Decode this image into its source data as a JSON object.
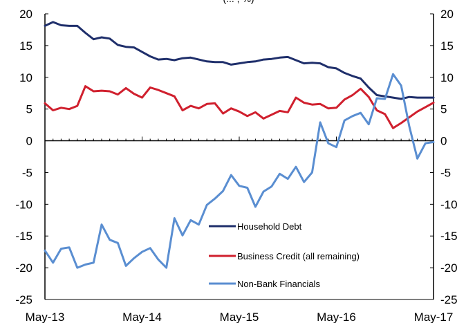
{
  "chart_data": {
    "type": "line",
    "title": "",
    "subtitle": "(... , %)",
    "xlabel": "",
    "ylabel": "",
    "ylim": [
      -25,
      20
    ],
    "yticks": [
      20,
      15,
      10,
      5,
      0,
      -5,
      -10,
      -15,
      -20,
      -25
    ],
    "yticks_right": [
      20,
      15,
      10,
      5,
      0,
      -5,
      -10,
      -15,
      -20,
      -25
    ],
    "xticks": [
      "May-13",
      "May-14",
      "May-15",
      "May-16",
      "May-17"
    ],
    "xlim": [
      "May-13",
      "May-17"
    ],
    "grid": false,
    "legend_position": "bottom-right",
    "series": [
      {
        "name": "Household Debt",
        "color": "#1f2f6b",
        "x": [
          "May-13",
          "Jun-13",
          "Jul-13",
          "Aug-13",
          "Sep-13",
          "Oct-13",
          "Nov-13",
          "Dec-13",
          "Jan-14",
          "Feb-14",
          "Mar-14",
          "Apr-14",
          "May-14",
          "Jun-14",
          "Jul-14",
          "Aug-14",
          "Sep-14",
          "Oct-14",
          "Nov-14",
          "Dec-14",
          "Jan-15",
          "Feb-15",
          "Mar-15",
          "Apr-15",
          "May-15",
          "Jun-15",
          "Jul-15",
          "Aug-15",
          "Sep-15",
          "Oct-15",
          "Nov-15",
          "Dec-15",
          "Jan-16",
          "Feb-16",
          "Mar-16",
          "Apr-16",
          "May-16",
          "Jun-16",
          "Jul-16",
          "Aug-16",
          "Sep-16",
          "Oct-16",
          "Nov-16",
          "Dec-16",
          "Jan-17",
          "Feb-17",
          "Mar-17",
          "Apr-17",
          "May-17"
        ],
        "values": [
          18.1,
          18.7,
          18.2,
          18.1,
          18.1,
          17.0,
          16.0,
          16.3,
          16.1,
          15.1,
          14.8,
          14.7,
          14.0,
          13.3,
          12.8,
          12.9,
          12.7,
          13.0,
          13.1,
          12.8,
          12.5,
          12.4,
          12.4,
          12.0,
          12.2,
          12.4,
          12.5,
          12.8,
          12.9,
          13.1,
          13.2,
          12.7,
          12.2,
          12.3,
          12.2,
          11.6,
          11.4,
          10.7,
          10.2,
          9.8,
          8.4,
          7.2,
          7.0,
          6.8,
          6.6,
          6.9,
          6.8,
          6.8,
          6.8
        ]
      },
      {
        "name": "Business Credit (all remaining)",
        "color": "#d0202e",
        "x": [
          "May-13",
          "Jun-13",
          "Jul-13",
          "Aug-13",
          "Sep-13",
          "Oct-13",
          "Nov-13",
          "Dec-13",
          "Jan-14",
          "Feb-14",
          "Mar-14",
          "Apr-14",
          "May-14",
          "Jun-14",
          "Jul-14",
          "Aug-14",
          "Sep-14",
          "Oct-14",
          "Nov-14",
          "Dec-14",
          "Jan-15",
          "Feb-15",
          "Mar-15",
          "Apr-15",
          "May-15",
          "Jun-15",
          "Jul-15",
          "Aug-15",
          "Sep-15",
          "Oct-15",
          "Nov-15",
          "Dec-15",
          "Jan-16",
          "Feb-16",
          "Mar-16",
          "Apr-16",
          "May-16",
          "Jun-16",
          "Jul-16",
          "Aug-16",
          "Sep-16",
          "Oct-16",
          "Nov-16",
          "Dec-16",
          "Jan-17",
          "Feb-17",
          "Mar-17",
          "Apr-17",
          "May-17"
        ],
        "values": [
          5.9,
          4.8,
          5.2,
          5.0,
          5.5,
          8.6,
          7.8,
          7.9,
          7.8,
          7.3,
          8.3,
          7.4,
          6.8,
          8.4,
          8.0,
          7.5,
          7.0,
          4.8,
          5.5,
          5.1,
          5.8,
          5.9,
          4.3,
          5.1,
          4.6,
          3.9,
          4.5,
          3.5,
          4.1,
          4.7,
          4.5,
          6.8,
          6.0,
          5.7,
          5.8,
          5.1,
          5.2,
          6.5,
          7.2,
          8.2,
          6.9,
          4.8,
          4.2,
          2.0,
          2.8,
          3.7,
          4.6,
          5.3,
          6.0
        ]
      },
      {
        "name": "Non-Bank Financials",
        "color": "#5a8ed1",
        "x": [
          "May-13",
          "Jun-13",
          "Jul-13",
          "Aug-13",
          "Sep-13",
          "Oct-13",
          "Nov-13",
          "Dec-13",
          "Jan-14",
          "Feb-14",
          "Mar-14",
          "Apr-14",
          "May-14",
          "Jun-14",
          "Jul-14",
          "Aug-14",
          "Sep-14",
          "Oct-14",
          "Nov-14",
          "Dec-14",
          "Jan-15",
          "Feb-15",
          "Mar-15",
          "Apr-15",
          "May-15",
          "Jun-15",
          "Jul-15",
          "Aug-15",
          "Sep-15",
          "Oct-15",
          "Nov-15",
          "Dec-15",
          "Jan-16",
          "Feb-16",
          "Mar-16",
          "Apr-16",
          "May-16",
          "Jun-16",
          "Jul-16",
          "Aug-16",
          "Sep-16",
          "Oct-16",
          "Nov-16",
          "Dec-16",
          "Jan-17",
          "Feb-17",
          "Mar-17",
          "Apr-17",
          "May-17"
        ],
        "values": [
          -17.3,
          -19.2,
          -17.0,
          -16.8,
          -20.0,
          -19.5,
          -19.2,
          -13.2,
          -15.6,
          -16.1,
          -19.7,
          -18.5,
          -17.5,
          -16.9,
          -18.7,
          -20.0,
          -12.2,
          -14.9,
          -12.5,
          -13.2,
          -10.1,
          -9.1,
          -7.9,
          -5.4,
          -7.1,
          -7.4,
          -10.4,
          -8.0,
          -7.2,
          -5.2,
          -6.0,
          -4.1,
          -6.5,
          -5.0,
          2.9,
          -0.4,
          -1.0,
          3.2,
          3.9,
          4.4,
          2.6,
          6.7,
          6.6,
          10.5,
          8.7,
          2.3,
          -2.8,
          -0.4,
          -0.2
        ]
      }
    ]
  }
}
